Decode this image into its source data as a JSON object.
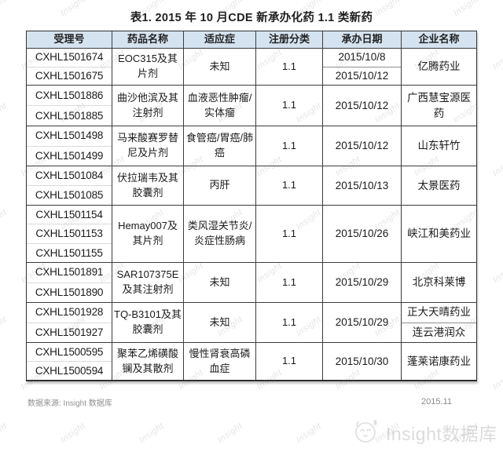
{
  "title": "表1. 2015 年 10 月CDE 新承办化药 1.1 类新药",
  "table": {
    "headers": [
      "受理号",
      "药品名称",
      "适应症",
      "注册分类",
      "承办日期",
      "企业名称"
    ],
    "rows": [
      {
        "numbers": [
          "CXHL1501674",
          "CXHL1501675"
        ],
        "drug": "EOC315及其片剂",
        "indication": "未知",
        "category": "1.1",
        "dates": [
          "2015/10/8",
          "2015/10/12"
        ],
        "companies": [
          "亿腾药业"
        ]
      },
      {
        "numbers": [
          "CXHL1501886",
          "CXHL1501885"
        ],
        "drug": "曲沙他滨及其注射剂",
        "indication": "血液恶性肿瘤/实体瘤",
        "category": "1.1",
        "dates": [
          "2015/10/12"
        ],
        "companies": [
          "广西慧宝源医药"
        ]
      },
      {
        "numbers": [
          "CXHL1501498",
          "CXHL1501499"
        ],
        "drug": "马来酸赛罗替尼及片剂",
        "indication": "食管癌/胃癌/肺癌",
        "category": "1.1",
        "dates": [
          "2015/10/12"
        ],
        "companies": [
          "山东轩竹"
        ]
      },
      {
        "numbers": [
          "CXHL1501084",
          "CXHL1501085"
        ],
        "drug": "伏拉瑞韦及其胶囊剂",
        "indication": "丙肝",
        "category": "1.1",
        "dates": [
          "2015/10/13"
        ],
        "companies": [
          "太景医药"
        ]
      },
      {
        "numbers": [
          "CXHL1501154",
          "CXHL1501153",
          "CXHL1501155"
        ],
        "drug": "Hemay007及其片剂",
        "indication": "类风湿关节炎/炎症性肠病",
        "category": "1.1",
        "dates": [
          "2015/10/26"
        ],
        "companies": [
          "峡江和美药业"
        ]
      },
      {
        "numbers": [
          "CXHL1501891",
          "CXHL1501890"
        ],
        "drug": "SAR107375E及其注射剂",
        "indication": "未知",
        "category": "1.1",
        "dates": [
          "2015/10/29"
        ],
        "companies": [
          "北京科莱博"
        ]
      },
      {
        "numbers": [
          "CXHL1501928",
          "CXHL1501927"
        ],
        "drug": "TQ-B3101及其胶囊剂",
        "indication": "未知",
        "category": "1.1",
        "dates": [
          "2015/10/29"
        ],
        "companies": [
          "正大天晴药业",
          "连云港润众"
        ]
      },
      {
        "numbers": [
          "CXHL1500595",
          "CXHL1500594"
        ],
        "drug": "聚苯乙烯磺酸镧及其散剂",
        "indication": "慢性肾衰高磷血症",
        "category": "1.1",
        "dates": [
          "2015/10/30"
        ],
        "companies": [
          "蓬莱诺康药业"
        ]
      }
    ]
  },
  "footer": {
    "source": "数据来源: Insight 数据库",
    "date": "2015.11"
  },
  "logo": {
    "text": "Insight数据库"
  },
  "watermark": {
    "text": "Insight"
  },
  "colors": {
    "header_bg": "#d5e3f0",
    "border": "#333333",
    "watermark": "#e0e0e0",
    "shadow": "#b5b5b5"
  }
}
